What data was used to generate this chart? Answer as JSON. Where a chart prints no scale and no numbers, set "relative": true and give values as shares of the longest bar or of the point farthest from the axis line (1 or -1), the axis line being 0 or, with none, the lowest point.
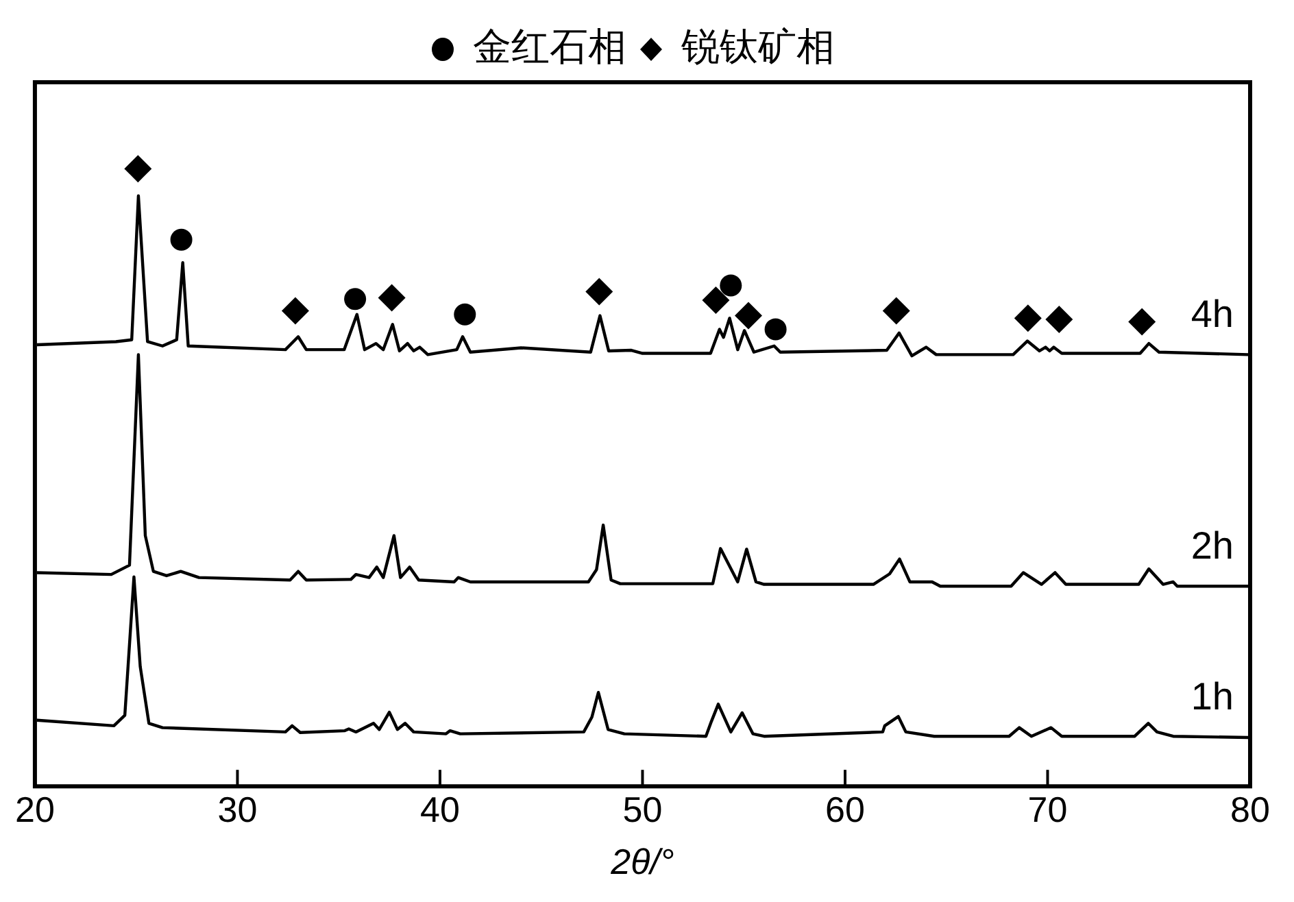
{
  "chart_data": {
    "type": "line",
    "relative": true,
    "xlabel": "2θ/°",
    "xlim": [
      20,
      80
    ],
    "xticks": [
      20,
      30,
      40,
      50,
      60,
      70,
      80
    ],
    "grid": false,
    "legend": "top",
    "marker": "none",
    "line_style": "solid",
    "series": [
      {
        "name": "4h",
        "color": "#000000",
        "x": [
          20.1,
          24.0,
          24.78,
          25.11,
          25.56,
          26.3,
          27.0,
          27.3,
          27.57,
          32.37,
          33.0,
          33.4,
          35.27,
          35.9,
          36.28,
          36.84,
          37.2,
          37.66,
          38.0,
          38.4,
          38.7,
          39.0,
          39.4,
          40.83,
          41.12,
          41.5,
          44.0,
          47.44,
          47.9,
          48.33,
          49.45,
          50.0,
          53.36,
          53.8,
          54.0,
          54.3,
          54.7,
          55.03,
          55.5,
          56.5,
          56.8,
          62.06,
          62.67,
          63.3,
          64.0,
          64.5,
          68.3,
          69.0,
          69.6,
          69.9,
          70.1,
          70.3,
          70.7,
          74.57,
          75.0,
          75.5,
          79.9
        ],
        "values": [
          0.715,
          0.72,
          0.723,
          0.956,
          0.72,
          0.713,
          0.723,
          0.848,
          0.713,
          0.707,
          0.728,
          0.707,
          0.707,
          0.764,
          0.707,
          0.717,
          0.707,
          0.748,
          0.705,
          0.717,
          0.705,
          0.711,
          0.699,
          0.707,
          0.728,
          0.703,
          0.71,
          0.703,
          0.762,
          0.705,
          0.706,
          0.701,
          0.701,
          0.74,
          0.727,
          0.758,
          0.707,
          0.738,
          0.703,
          0.713,
          0.703,
          0.706,
          0.734,
          0.697,
          0.711,
          0.699,
          0.699,
          0.721,
          0.705,
          0.711,
          0.705,
          0.711,
          0.701,
          0.701,
          0.717,
          0.703,
          0.699
        ]
      },
      {
        "name": "2h",
        "color": "#000000",
        "x": [
          20.1,
          23.77,
          24.67,
          25.11,
          25.45,
          25.85,
          26.5,
          27.2,
          28.1,
          32.6,
          33.0,
          33.4,
          35.6,
          35.85,
          36.5,
          36.88,
          37.2,
          37.73,
          38.05,
          38.5,
          38.95,
          40.7,
          40.9,
          41.5,
          47.33,
          47.73,
          48.06,
          48.45,
          48.9,
          53.47,
          53.85,
          54.7,
          55.14,
          55.6,
          56.0,
          61.4,
          62.2,
          62.69,
          63.2,
          64.3,
          64.7,
          68.2,
          68.8,
          69.7,
          70.37,
          70.9,
          74.5,
          75.0,
          75.7,
          76.2,
          76.4,
          79.9
        ],
        "values": [
          0.346,
          0.343,
          0.358,
          0.699,
          0.406,
          0.348,
          0.341,
          0.348,
          0.338,
          0.334,
          0.348,
          0.334,
          0.335,
          0.343,
          0.338,
          0.355,
          0.338,
          0.406,
          0.338,
          0.355,
          0.334,
          0.331,
          0.338,
          0.331,
          0.331,
          0.351,
          0.423,
          0.334,
          0.328,
          0.328,
          0.385,
          0.331,
          0.384,
          0.331,
          0.327,
          0.327,
          0.344,
          0.368,
          0.331,
          0.331,
          0.324,
          0.324,
          0.346,
          0.327,
          0.346,
          0.327,
          0.327,
          0.352,
          0.327,
          0.331,
          0.324,
          0.324
        ]
      },
      {
        "name": "1h",
        "color": "#000000",
        "x": [
          20.1,
          23.9,
          24.44,
          24.89,
          25.2,
          25.63,
          26.3,
          32.37,
          32.7,
          33.1,
          35.3,
          35.5,
          35.85,
          36.72,
          37.0,
          37.5,
          37.9,
          38.28,
          38.7,
          40.3,
          40.5,
          41.0,
          47.1,
          47.5,
          47.82,
          48.3,
          49.1,
          53.13,
          53.4,
          53.74,
          54.36,
          54.92,
          55.45,
          56.0,
          61.86,
          61.96,
          62.63,
          63.0,
          64.4,
          68.1,
          68.6,
          69.2,
          70.17,
          70.7,
          74.3,
          74.97,
          75.4,
          76.2,
          79.9
        ],
        "values": [
          0.107,
          0.098,
          0.115,
          0.339,
          0.194,
          0.102,
          0.095,
          0.088,
          0.098,
          0.087,
          0.09,
          0.093,
          0.088,
          0.102,
          0.092,
          0.12,
          0.092,
          0.102,
          0.088,
          0.085,
          0.09,
          0.085,
          0.088,
          0.112,
          0.152,
          0.092,
          0.085,
          0.081,
          0.105,
          0.133,
          0.088,
          0.119,
          0.085,
          0.081,
          0.088,
          0.098,
          0.113,
          0.088,
          0.081,
          0.081,
          0.095,
          0.081,
          0.095,
          0.081,
          0.081,
          0.102,
          0.088,
          0.081,
          0.079
        ]
      },
      {
        "name": "金红石相",
        "type": "scatter",
        "marker": "circle",
        "color": "#000000",
        "x": [
          27.23,
          35.81,
          41.23,
          54.36,
          56.57
        ],
        "values": [
          0.885,
          0.789,
          0.764,
          0.811,
          0.74
        ]
      },
      {
        "name": "锐钛矿相",
        "type": "scatter",
        "marker": "diamond",
        "color": "#000000",
        "x": [
          25.09,
          32.86,
          37.62,
          47.86,
          53.62,
          55.23,
          62.53,
          69.03,
          70.57,
          74.66
        ],
        "values": [
          1.0,
          0.77,
          0.791,
          0.801,
          0.787,
          0.762,
          0.77,
          0.758,
          0.756,
          0.752
        ]
      }
    ]
  }
}
